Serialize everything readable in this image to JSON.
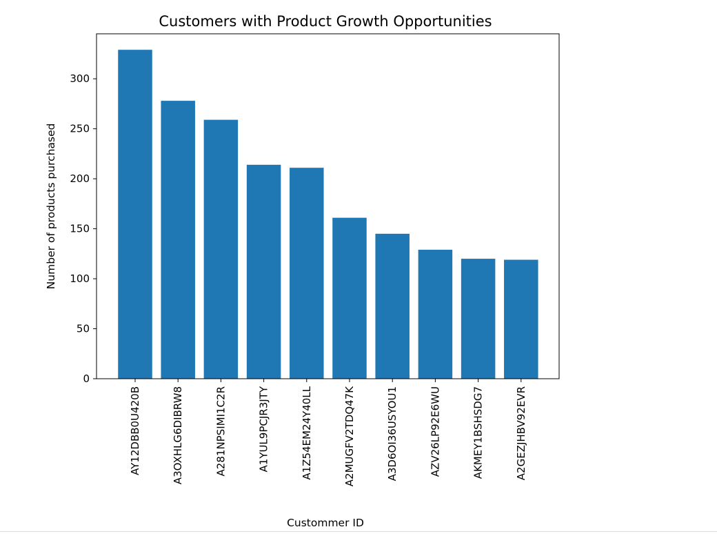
{
  "chart_data": {
    "type": "bar",
    "title": "Customers with Product Growth Opportunities",
    "xlabel": "Custommer ID",
    "ylabel": "Number of products purchased",
    "categories": [
      "AY12DBB0U420B",
      "A3OXHLG6DIBRW8",
      "A281NPSIMI1C2R",
      "A1YUL9PCJR3JTY",
      "A1Z54EM24Y40LL",
      "A2MUGFV2TDQ47K",
      "A3D6OI36USYOU1",
      "AZV26LP92E6WU",
      "AKMEY1BSHSDG7",
      "A2GEZJHBV92EVR"
    ],
    "values": [
      329,
      278,
      259,
      214,
      211,
      161,
      145,
      129,
      120,
      119
    ],
    "ylim": [
      0,
      345
    ],
    "yticks": [
      0,
      50,
      100,
      150,
      200,
      250,
      300
    ],
    "bar_color": "#1f77b4",
    "grid": false,
    "legend": "none"
  }
}
